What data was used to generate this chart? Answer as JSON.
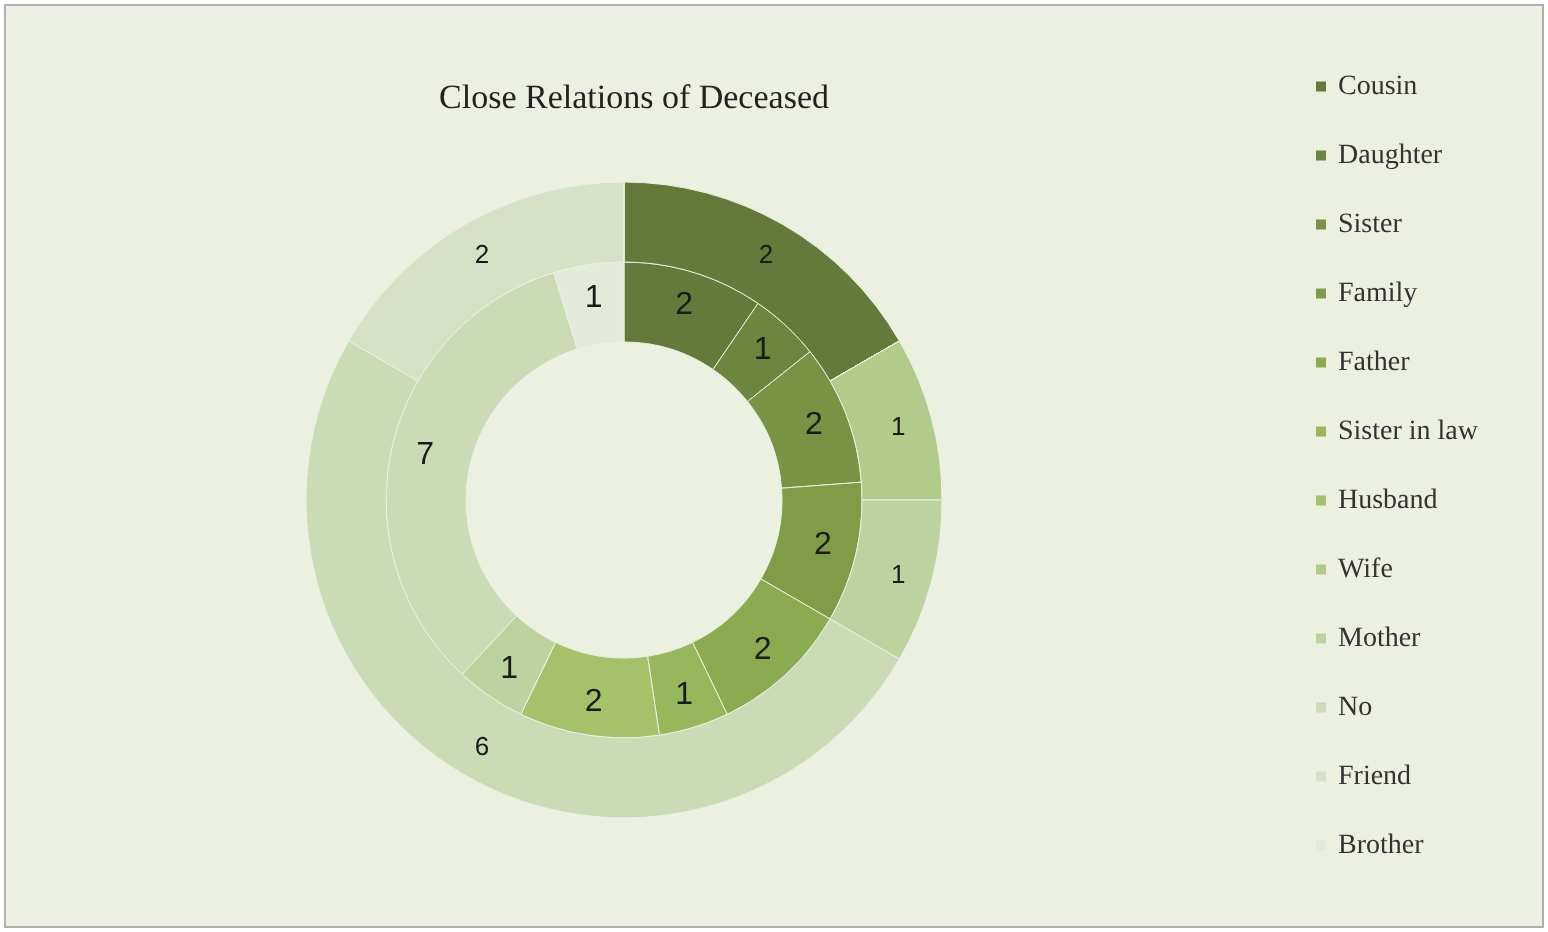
{
  "chart_data": {
    "type": "donut",
    "title": "Close Relations of Deceased",
    "categories": [
      "Cousin",
      "Daughter",
      "Sister",
      "Family",
      "Father",
      "Sister in law",
      "Husband",
      "Wife",
      "Mother",
      "No",
      "Friend",
      "Brother"
    ],
    "colors": [
      "#647a3a",
      "#6c853f",
      "#779343",
      "#7f9d47",
      "#8aab4f",
      "#97b75c",
      "#a4c26a",
      "#b0cb8a",
      "#bcd3a0",
      "#cadbb5",
      "#d5e2c6",
      "#e3eadb"
    ],
    "series": [
      {
        "values": [
          2,
          1,
          2,
          2,
          2,
          1,
          2,
          0,
          1,
          7,
          0,
          1
        ]
      },
      {
        "values": [
          2,
          0,
          0,
          0,
          0,
          0,
          0,
          1,
          1,
          6,
          2,
          0
        ]
      }
    ],
    "data_labels": true,
    "legend": "right"
  }
}
